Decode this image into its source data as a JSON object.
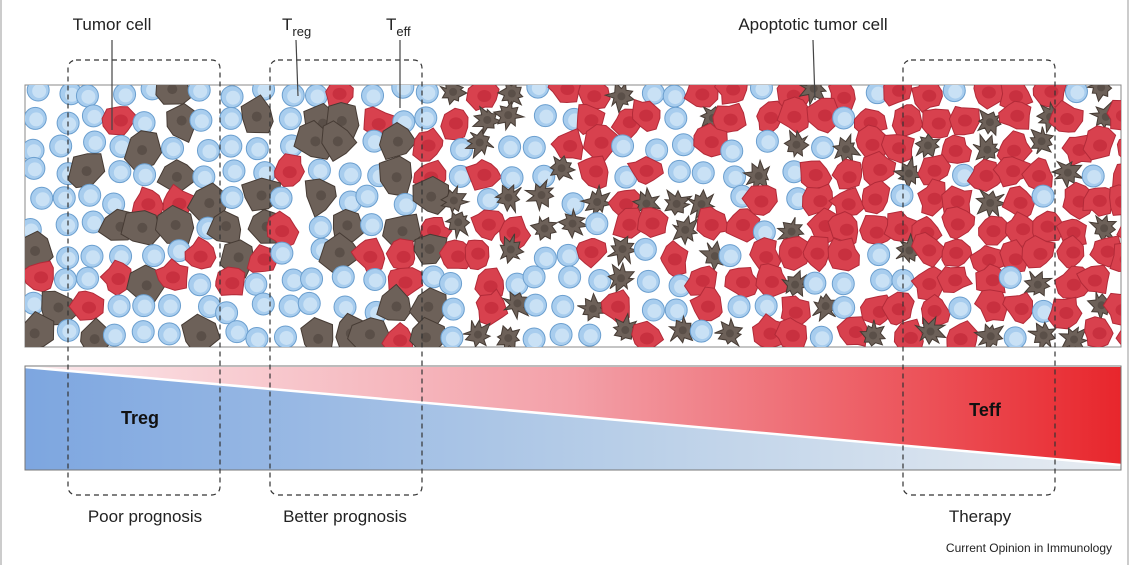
{
  "labels": {
    "tumor_cell": "Tumor cell",
    "treg": {
      "main": "T",
      "sub": "reg"
    },
    "teff": {
      "main": "T",
      "sub": "eff"
    },
    "apoptotic": "Apoptotic tumor cell"
  },
  "bar": {
    "left": "Treg",
    "right": "Teff"
  },
  "zones": [
    "Poor prognosis",
    "Better prognosis",
    "Therapy"
  ],
  "footer": "Current Opinion in Immunology"
}
